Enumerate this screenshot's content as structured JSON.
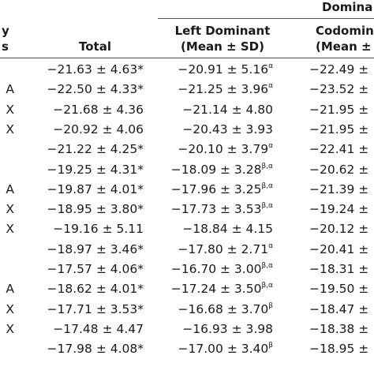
{
  "header": {
    "group": "Domina",
    "label_fragment_line1": "y",
    "label_fragment_line2": "s",
    "total": "Total",
    "left_dominant_line1": "Left Dominant",
    "left_dominant_line2": "(Mean ± SD)",
    "codominant_line1": "Codomin",
    "codominant_line2": "(Mean ±"
  },
  "rows": [
    {
      "label": "",
      "total": "−21.63 ± 4.63*",
      "ld": "−20.91 ± 5.16",
      "ld_sup": "α",
      "cd": "−22.49 ±"
    },
    {
      "label": "A",
      "total": "−22.50 ± 4.33*",
      "ld": "−21.25 ± 3.96",
      "ld_sup": "α",
      "cd": "−23.52 ±"
    },
    {
      "label": "X",
      "total": "−21.68 ± 4.36",
      "ld": "−21.14 ± 4.80",
      "ld_sup": "",
      "cd": "−21.95 ±"
    },
    {
      "label": "X",
      "total": "−20.92 ± 4.06",
      "ld": "−20.43 ± 3.93",
      "ld_sup": "",
      "cd": "−21.95 ±"
    },
    {
      "label": "",
      "total": "−21.22 ± 4.25*",
      "ld": "−20.10 ± 3.79",
      "ld_sup": "α",
      "cd": "−22.41 ±"
    },
    {
      "label": "",
      "total": "−19.25 ± 4.31*",
      "ld": "−18.09 ± 3.28",
      "ld_sup": "β,α",
      "cd": "−20.62 ±"
    },
    {
      "label": "A",
      "total": "−19.87 ± 4.01*",
      "ld": "−17.96 ± 3.25",
      "ld_sup": "β,α",
      "cd": "−21.39 ±"
    },
    {
      "label": "X",
      "total": "−18.95 ± 3.80*",
      "ld": "−17.73 ± 3.53",
      "ld_sup": "β,α",
      "cd": "−19.24 ±"
    },
    {
      "label": "X",
      "total": "−19.16 ± 5.11",
      "ld": "−18.84 ± 4.15",
      "ld_sup": "",
      "cd": "−20.12 ±"
    },
    {
      "label": "",
      "total": "−18.97 ± 3.46*",
      "ld": "−17.80 ± 2.71",
      "ld_sup": "α",
      "cd": "−20.41 ±"
    },
    {
      "label": "",
      "total": "−17.57 ± 4.06*",
      "ld": "−16.70 ± 3.00",
      "ld_sup": "β,α",
      "cd": "−18.31 ±"
    },
    {
      "label": "A",
      "total": "−18.62 ± 4.01*",
      "ld": "−17.24 ± 3.50",
      "ld_sup": "β,α",
      "cd": "−19.50 ±"
    },
    {
      "label": "X",
      "total": "−17.71 ± 3.53*",
      "ld": "−16.68 ± 3.70",
      "ld_sup": "β",
      "cd": "−18.47 ±"
    },
    {
      "label": "X",
      "total": "−17.48 ± 4.47",
      "ld": "−16.93 ± 3.98",
      "ld_sup": "",
      "cd": "−18.38 ±"
    },
    {
      "label": "",
      "total": "−17.98 ± 4.08*",
      "ld": "−17.00 ± 3.40",
      "ld_sup": "β",
      "cd": "−18.95 ±"
    }
  ]
}
